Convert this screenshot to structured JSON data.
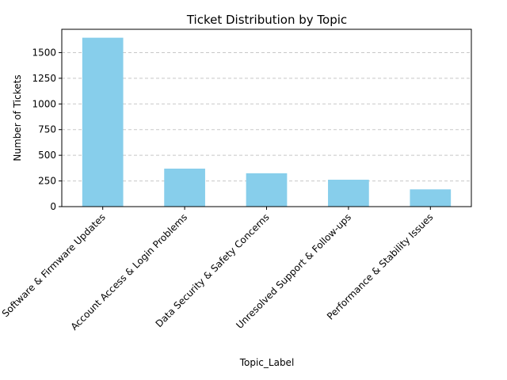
{
  "chart_data": {
    "type": "bar",
    "title": "Ticket Distribution by Topic",
    "xlabel": "Topic_Label",
    "ylabel": "Number of Tickets",
    "categories": [
      "Software & Firmware Updates",
      "Account Access & Login Problems",
      "Data Security & Safety Concerns",
      "Unresolved Support & Follow-ups",
      "Performance & Stability Issues"
    ],
    "values": [
      1645,
      370,
      325,
      262,
      168
    ],
    "ylim": [
      0,
      1727
    ],
    "yticks": [
      0,
      250,
      500,
      750,
      1000,
      1250,
      1500
    ],
    "grid": "y-dashed",
    "colors": {
      "bar": "#87ceeb",
      "grid": "#c8c8c8",
      "axis": "#000000"
    }
  }
}
